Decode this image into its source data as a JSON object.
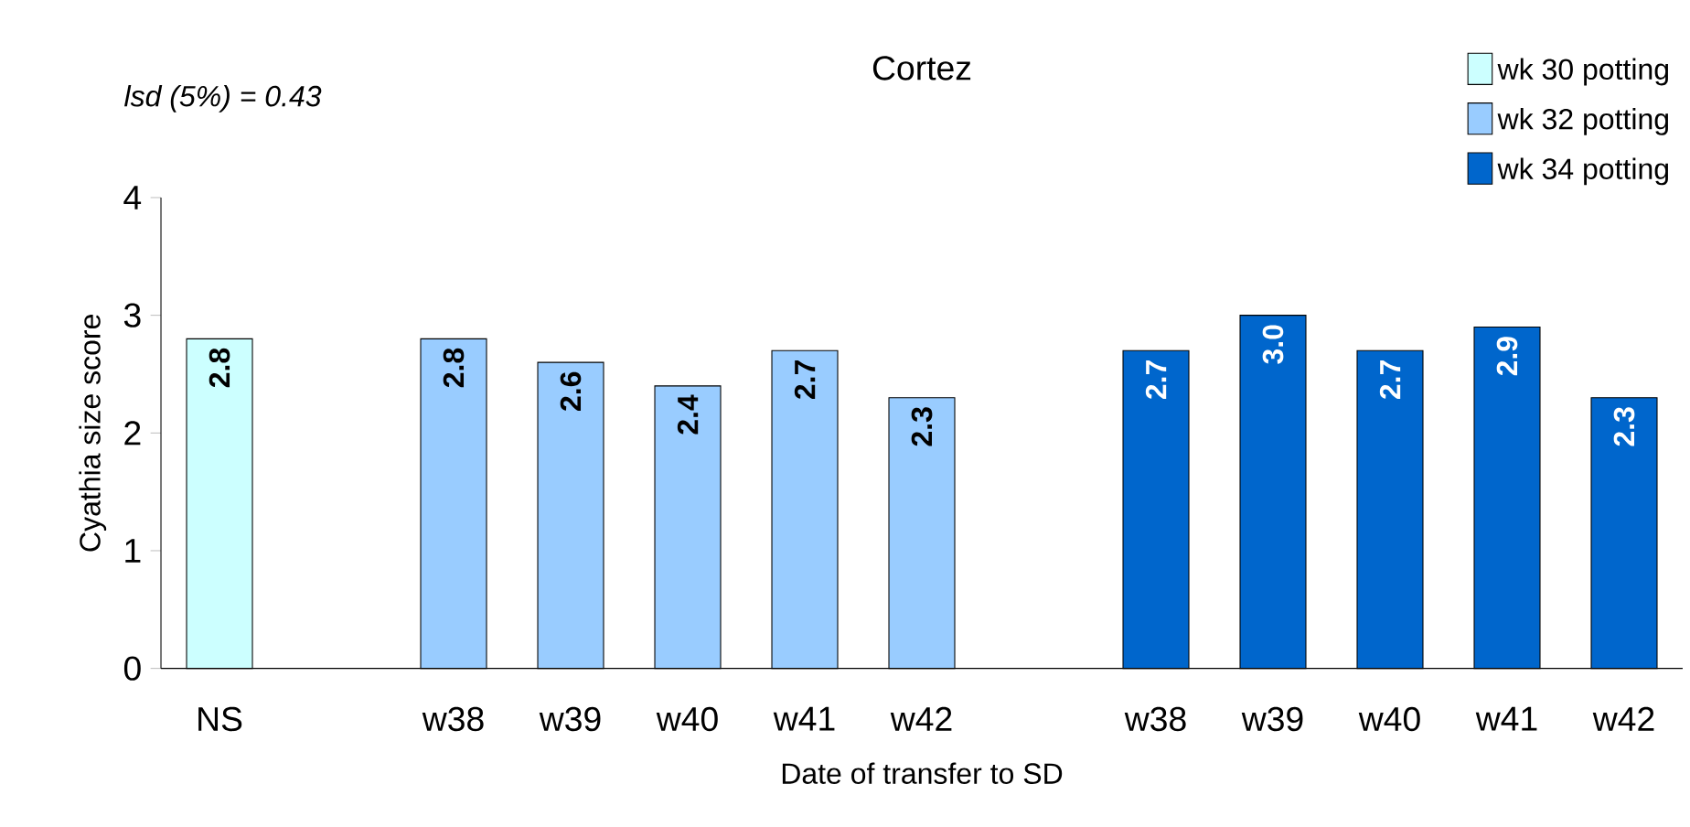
{
  "chart_data": {
    "type": "bar",
    "title": "Cortez",
    "xlabel": "Date of transfer to SD",
    "ylabel": "Cyathia size score",
    "annotations": [
      "lsd (5%) = 0.43"
    ],
    "categories": [
      "NS",
      null,
      "w38",
      "w39",
      "w40",
      "w41",
      "w42",
      null,
      "w38",
      "w39",
      "w40",
      "w41",
      "w42"
    ],
    "series": [
      {
        "name": "wk 30 potting",
        "color": "#ccffff",
        "values": [
          2.8,
          null,
          null,
          null,
          null,
          null,
          null,
          null,
          null,
          null,
          null,
          null,
          null
        ],
        "value_labels": [
          "2.8",
          null,
          null,
          null,
          null,
          null,
          null,
          null,
          null,
          null,
          null,
          null,
          null
        ]
      },
      {
        "name": "wk 32 potting",
        "color": "#99ccff",
        "values": [
          null,
          null,
          2.8,
          2.6,
          2.4,
          2.7,
          2.3,
          null,
          null,
          null,
          null,
          null,
          null
        ],
        "value_labels": [
          null,
          null,
          "2.8",
          "2.6",
          "2.4",
          "2.7",
          "2.3",
          null,
          null,
          null,
          null,
          null,
          null
        ]
      },
      {
        "name": "wk 34 potting",
        "color": "#0066cc",
        "values": [
          null,
          null,
          null,
          null,
          null,
          null,
          null,
          null,
          2.7,
          3.0,
          2.7,
          2.9,
          2.3
        ],
        "value_labels": [
          null,
          null,
          null,
          null,
          null,
          null,
          null,
          null,
          "2.7",
          "3.0",
          "2.7",
          "2.9",
          "2.3"
        ]
      }
    ],
    "ylim": [
      0,
      4
    ],
    "yticks": [
      0,
      1,
      2,
      3,
      4
    ],
    "grid": false,
    "legend": "top right"
  }
}
